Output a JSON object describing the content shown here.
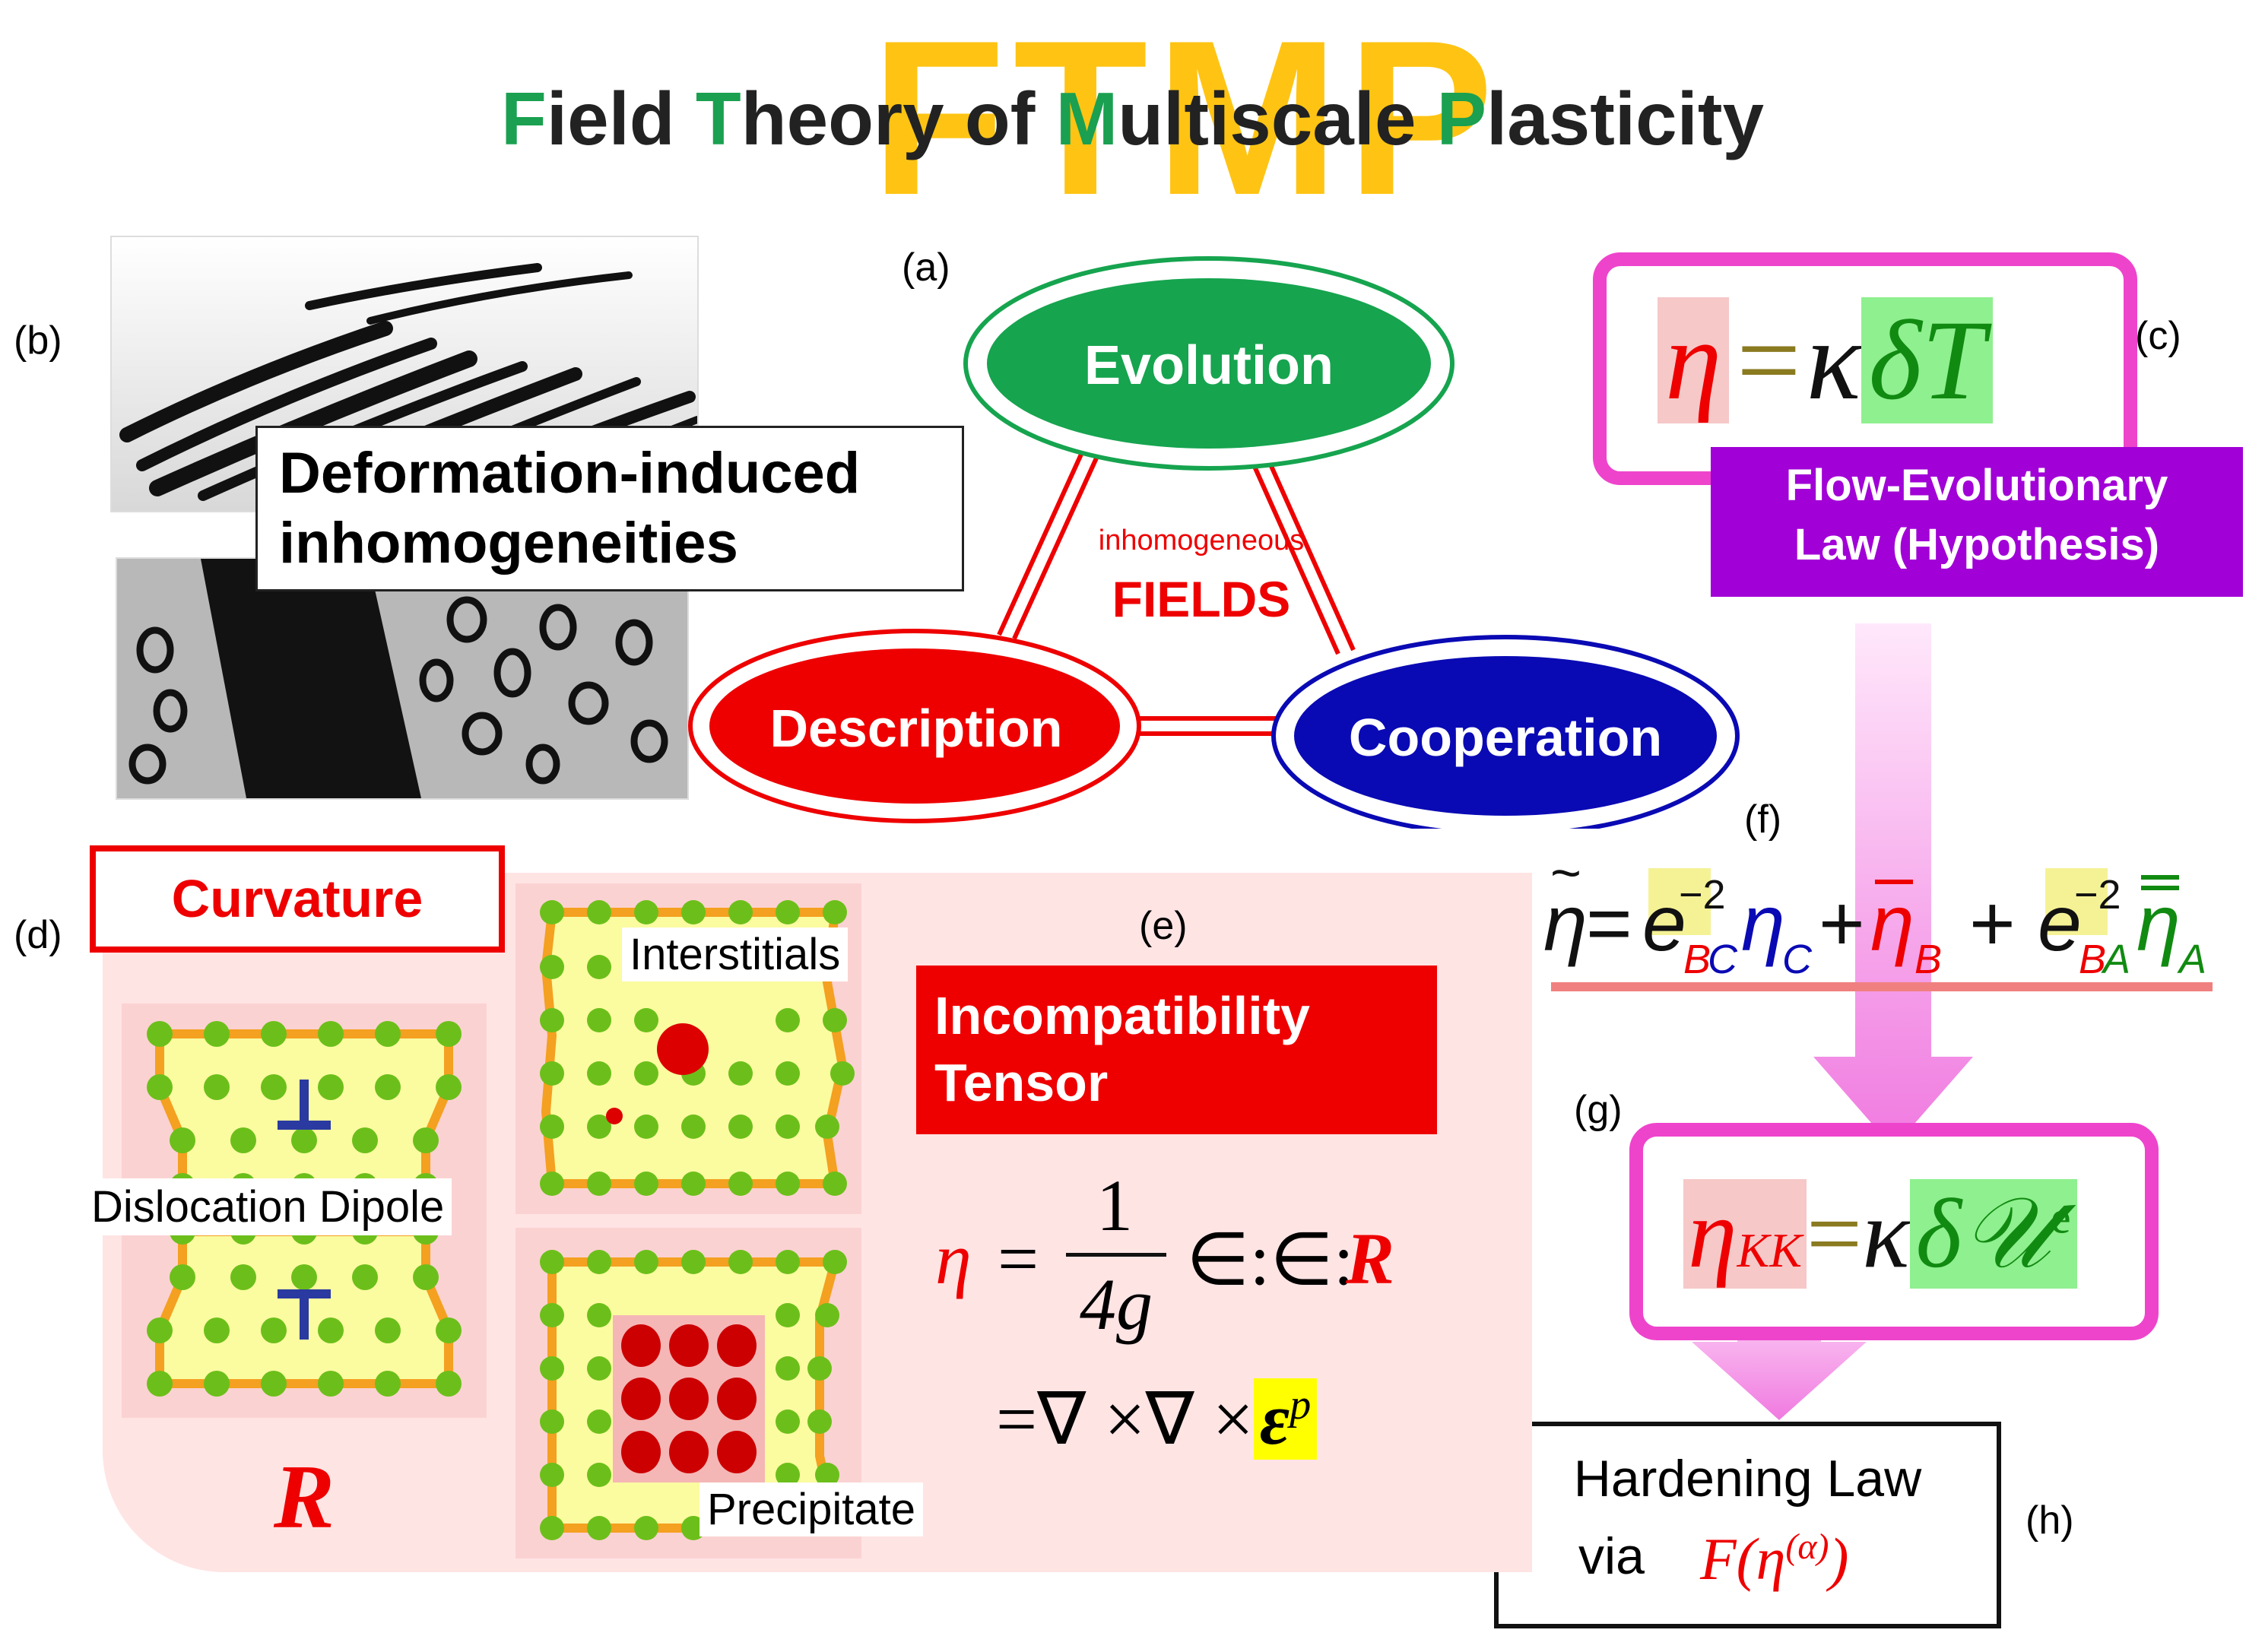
{
  "header": {
    "logo_text": "FTMP",
    "title_parts": [
      {
        "text": "F",
        "accent": true
      },
      {
        "text": "ield ",
        "accent": false
      },
      {
        "text": "T",
        "accent": true
      },
      {
        "text": "heory of ",
        "accent": false
      },
      {
        "text": "M",
        "accent": true
      },
      {
        "text": "ultiscale ",
        "accent": false
      },
      {
        "text": "P",
        "accent": true
      },
      {
        "text": "lasticity",
        "accent": false
      }
    ]
  },
  "labels": {
    "a": "(a)",
    "b": "(b)",
    "c": "(c)",
    "d": "(d)",
    "e": "(e)",
    "f": "(f)",
    "g": "(g)",
    "h": "(h)"
  },
  "panel_b": {
    "caption_line1": "Deformation-induced",
    "caption_line2": "inhomogeneities"
  },
  "panel_a": {
    "top": "Evolution",
    "left": "Description",
    "right": "Cooperation",
    "center_small": "inhomogeneous",
    "center_big": "FIELDS"
  },
  "panel_c": {
    "eq_eta": "η",
    "eq_eq": "=",
    "eq_kappa": "κ",
    "eq_dT": "δT",
    "caption_line1": "Flow-Evolutionary",
    "caption_line2": "Law (Hypothesis)"
  },
  "panel_d": {
    "title": "Curvature",
    "dipole": "Dislocation Dipole",
    "symbol": "R",
    "interstitials": "Interstitials",
    "precipitate": "Precipitate"
  },
  "panel_e": {
    "title_line1": "Incompatibility",
    "title_line2": "Tensor",
    "eq1_lhs": "η",
    "eq1_eq": "=",
    "eq1_num": "1",
    "eq1_den": "4g",
    "eq1_rhs": "∈:∈:",
    "eq1_R": "R",
    "eq2_lhs": "=∇ ×∇ ×",
    "eq2_eps": "ε",
    "eq2_sup": "p"
  },
  "panel_g": {
    "eta": "η",
    "sub": "KK",
    "eq": "=",
    "kappa": "κ",
    "dU": "δ𝒰",
    "sup": "e"
  },
  "panel_h": {
    "line1": "Hardening Law",
    "line2": "via",
    "formula": "F(η",
    "formula_sup": "(α)",
    "formula_end": ")"
  },
  "colors": {
    "ftmp": "#ffc000",
    "accent_green": "#1aa050",
    "evolution": "#16a44f",
    "description": "#ee0000",
    "cooperation": "#0a0ab4",
    "purple": "#a100d6",
    "magenta_frame": "#ee44cc",
    "red_label": "#ee0000"
  }
}
